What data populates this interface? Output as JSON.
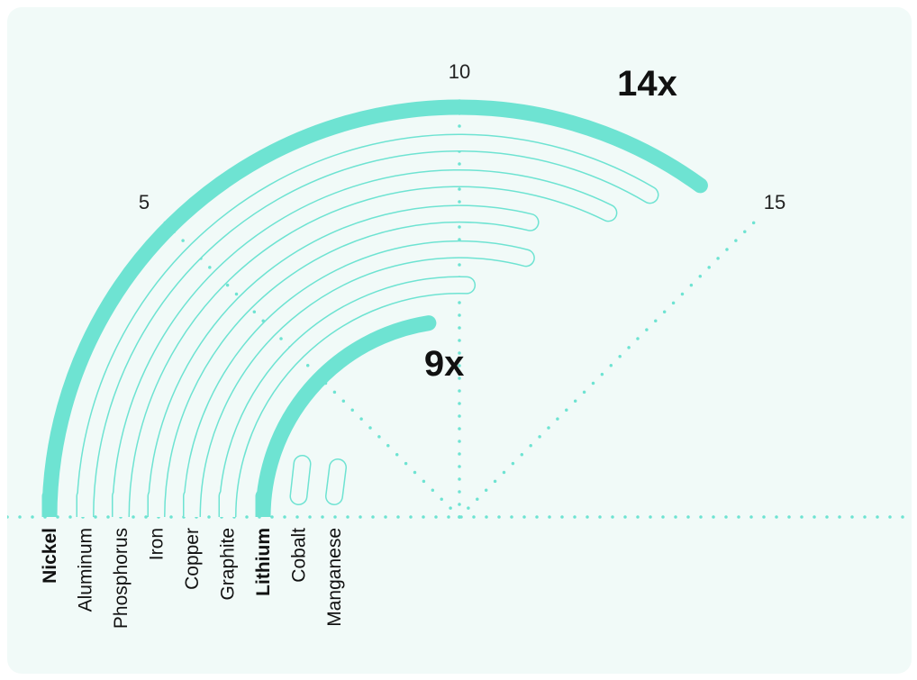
{
  "chart_data": {
    "type": "radial-bar",
    "angular_axis": {
      "min": 0,
      "max": 20,
      "ticks": [
        5,
        10,
        15
      ]
    },
    "categories": [
      "Nickel",
      "Aluminum",
      "Phosphorus",
      "Iron",
      "Copper",
      "Graphite",
      "Lithium",
      "Cobalt",
      "Manganese"
    ],
    "values": [
      14,
      13.4,
      12.9,
      11.5,
      11.6,
      10.2,
      9,
      0.9,
      0.8
    ],
    "highlighted": [
      "Nickel",
      "Lithium"
    ],
    "callouts": [
      {
        "category": "Nickel",
        "text": "14x"
      },
      {
        "category": "Lithium",
        "text": "9x"
      }
    ],
    "grid": "dotted radial lines at ticks",
    "colors": {
      "accent": "#6ee3d2",
      "outline": "#6ee3d2",
      "grid": "#6ee3d2",
      "background": "#f1faf8",
      "text": "#111111"
    }
  }
}
